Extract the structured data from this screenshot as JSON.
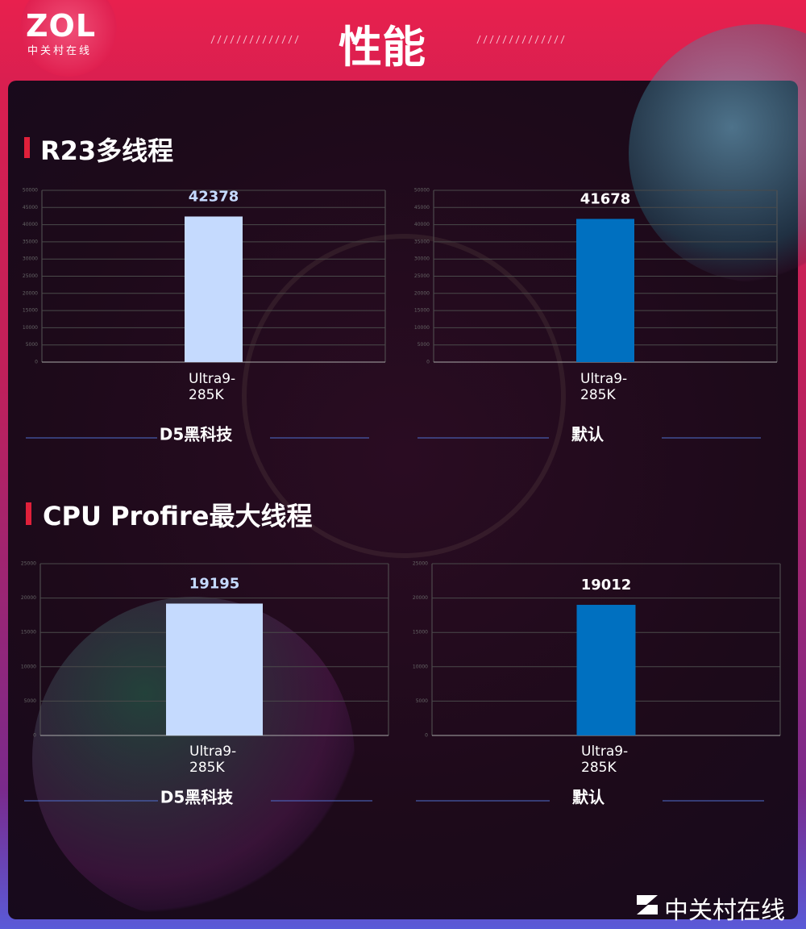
{
  "header": {
    "logo": "ZOL",
    "logo_sub": "中关村在线",
    "title": "性能"
  },
  "sections": [
    {
      "title": "R23多线程"
    },
    {
      "title": "CPU Profire最大线程"
    }
  ],
  "footer": "中关村在线",
  "chart_data": [
    {
      "type": "bar",
      "title": "D5黑科技",
      "categories": [
        "Ultra9-285K"
      ],
      "values": [
        42378
      ],
      "color": "#c5dafe",
      "ylim": [
        0,
        50000
      ],
      "yticks": [
        0,
        5000,
        10000,
        15000,
        20000,
        25000,
        30000,
        35000,
        40000,
        45000,
        50000
      ],
      "grid": true
    },
    {
      "type": "bar",
      "title": "默认",
      "categories": [
        "Ultra9-285K"
      ],
      "values": [
        41678
      ],
      "color": "#0070c0",
      "ylim": [
        0,
        50000
      ],
      "yticks": [
        0,
        5000,
        10000,
        15000,
        20000,
        25000,
        30000,
        35000,
        40000,
        45000,
        50000
      ],
      "grid": true
    },
    {
      "type": "bar",
      "title": "D5黑科技",
      "categories": [
        "Ultra9-285K"
      ],
      "values": [
        19195
      ],
      "color": "#c5dafe",
      "ylim": [
        0,
        25000
      ],
      "yticks": [
        0,
        5000,
        10000,
        15000,
        20000,
        25000
      ],
      "grid": true
    },
    {
      "type": "bar",
      "title": "默认",
      "categories": [
        "Ultra9-285K"
      ],
      "values": [
        19012
      ],
      "color": "#0070c0",
      "ylim": [
        0,
        25000
      ],
      "yticks": [
        0,
        5000,
        10000,
        15000,
        20000,
        25000
      ],
      "grid": true
    }
  ]
}
